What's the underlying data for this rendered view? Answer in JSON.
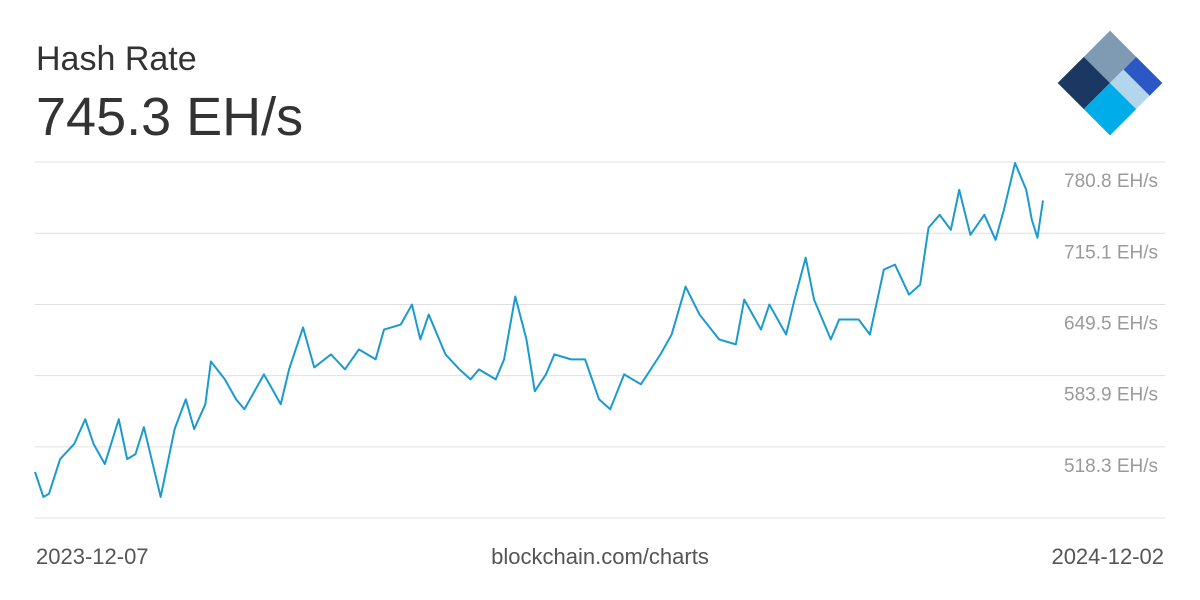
{
  "chart_data": {
    "type": "line",
    "title": "Hash Rate",
    "subtitle": "745.3 EH/s",
    "source": "blockchain.com/charts",
    "xlim": [
      "2023-12-07",
      "2024-12-02"
    ],
    "ylim": [
      452.7,
      780.8
    ],
    "yticks": [
      {
        "value": 518.3,
        "label": "518.3 EH/s"
      },
      {
        "value": 583.9,
        "label": "583.9 EH/s"
      },
      {
        "value": 649.5,
        "label": "649.5 EH/s"
      },
      {
        "value": 715.1,
        "label": "715.1 EH/s"
      },
      {
        "value": 780.8,
        "label": "780.8 EH/s"
      }
    ],
    "grid": true,
    "x": [
      "2023-12-07",
      "2023-12-10",
      "2023-12-12",
      "2023-12-16",
      "2023-12-21",
      "2023-12-25",
      "2023-12-28",
      "2024-01-01",
      "2024-01-06",
      "2024-01-09",
      "2024-01-12",
      "2024-01-15",
      "2024-01-21",
      "2024-01-26",
      "2024-01-30",
      "2024-02-02",
      "2024-02-06",
      "2024-02-08",
      "2024-02-13",
      "2024-02-17",
      "2024-02-20",
      "2024-02-24",
      "2024-02-27",
      "2024-03-04",
      "2024-03-07",
      "2024-03-12",
      "2024-03-16",
      "2024-03-22",
      "2024-03-27",
      "2024-04-01",
      "2024-04-07",
      "2024-04-10",
      "2024-04-16",
      "2024-04-20",
      "2024-04-23",
      "2024-04-26",
      "2024-05-02",
      "2024-05-07",
      "2024-05-11",
      "2024-05-14",
      "2024-05-20",
      "2024-05-23",
      "2024-05-27",
      "2024-05-31",
      "2024-06-03",
      "2024-06-07",
      "2024-06-10",
      "2024-06-16",
      "2024-06-21",
      "2024-06-26",
      "2024-06-30",
      "2024-07-05",
      "2024-07-11",
      "2024-07-18",
      "2024-07-22",
      "2024-07-27",
      "2024-08-01",
      "2024-08-08",
      "2024-08-14",
      "2024-08-17",
      "2024-08-23",
      "2024-08-26",
      "2024-09-01",
      "2024-09-04",
      "2024-09-08",
      "2024-09-11",
      "2024-09-17",
      "2024-09-20",
      "2024-09-27",
      "2024-10-01",
      "2024-10-06",
      "2024-10-10",
      "2024-10-15",
      "2024-10-19",
      "2024-10-22",
      "2024-10-26",
      "2024-10-30",
      "2024-11-02",
      "2024-11-06",
      "2024-11-11",
      "2024-11-15",
      "2024-11-18",
      "2024-11-22",
      "2024-11-26",
      "2024-11-28",
      "2024-11-30",
      "2024-12-02"
    ],
    "series": [
      {
        "name": "Hash Rate",
        "color": "#1a9ad0",
        "values": [
          495.1,
          472.1,
          475.0,
          507.0,
          520.8,
          543.7,
          520.8,
          502.4,
          543.7,
          507.0,
          511.6,
          536.4,
          472.1,
          534.6,
          562.1,
          534.6,
          557.5,
          597.0,
          580.5,
          562.1,
          552.9,
          571.3,
          585.1,
          557.5,
          589.7,
          628.3,
          591.5,
          603.5,
          589.7,
          608.1,
          598.9,
          626.4,
          631.0,
          649.4,
          617.3,
          640.2,
          603.5,
          589.7,
          580.5,
          589.7,
          580.5,
          598.9,
          656.8,
          617.3,
          569.5,
          585.1,
          603.5,
          598.9,
          598.9,
          562.1,
          552.9,
          585.1,
          575.9,
          603.5,
          621.8,
          665.9,
          640.2,
          617.3,
          612.7,
          654.0,
          626.4,
          649.4,
          621.8,
          654.0,
          692.6,
          654.0,
          617.3,
          635.6,
          635.6,
          621.8,
          681.6,
          686.2,
          658.6,
          667.8,
          720.2,
          732.1,
          718.3,
          755.1,
          713.7,
          732.1,
          709.1,
          736.7,
          779.9,
          755.1,
          727.5,
          711.0,
          745.3
        ]
      }
    ]
  }
}
